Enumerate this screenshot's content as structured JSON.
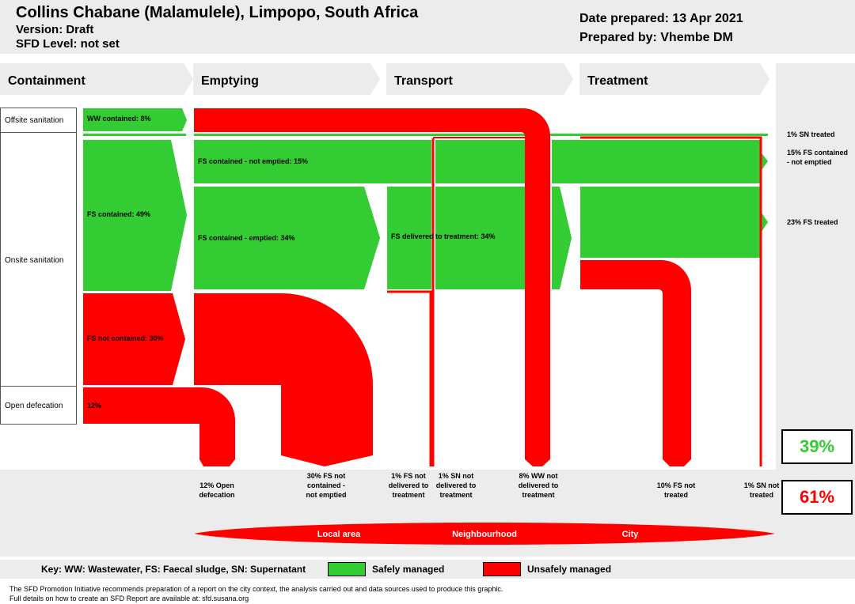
{
  "header": {
    "title": "Collins Chabane (Malamulele), Limpopo, South Africa",
    "version": "Version: Draft",
    "sfd_level": "SFD Level: not set",
    "date_prepared": "Date prepared: 13 Apr 2021",
    "prepared_by": "Prepared by: Vhembe DM"
  },
  "stages": [
    "Containment",
    "Emptying",
    "Transport",
    "Treatment"
  ],
  "row_labels": [
    "Offsite sanitation",
    "Onsite sanitation",
    "Open defecation"
  ],
  "flows": {
    "ww_contained": "WW contained: 8%",
    "fs_contained": "FS contained: 49%",
    "fs_not_contained": "FS not contained: 30%",
    "open_defecation": "12%",
    "fs_contained_not_emptied": "FS contained - not emptied: 15%",
    "fs_contained_emptied": "FS contained - emptied: 34%",
    "fs_delivered": "FS delivered to treatment: 34%"
  },
  "right_outcomes": [
    "1% SN treated",
    "15% FS contained - not emptied",
    "23% FS treated"
  ],
  "bottom_outcomes": [
    "12% Open defecation",
    "30% FS not contained - not emptied",
    "1% FS not delivered to treatment",
    "1% SN not delivered to treatment",
    "8% WW not delivered to treatment",
    "10% FS not treated",
    "1% SN not treated"
  ],
  "scale_labels": [
    "Local area",
    "Neighbourhood",
    "City"
  ],
  "safely_managed_pct": "39%",
  "unsafely_managed_pct": "61%",
  "colors": {
    "safe": "#33cc33",
    "unsafe": "#ff0000",
    "band": "#ececec"
  },
  "key": {
    "abbrev": "Key: WW: Wastewater, FS: Faecal sludge, SN: Supernatant",
    "safe_label": "Safely managed",
    "unsafe_label": "Unsafely managed"
  },
  "footer": {
    "line1": "The SFD Promotion Initiative recommends preparation of a report on the city context, the analysis carried out and data sources used to produce this graphic.",
    "line2": "Full details on how to create an SFD Report are available at: sfd.susana.org"
  }
}
